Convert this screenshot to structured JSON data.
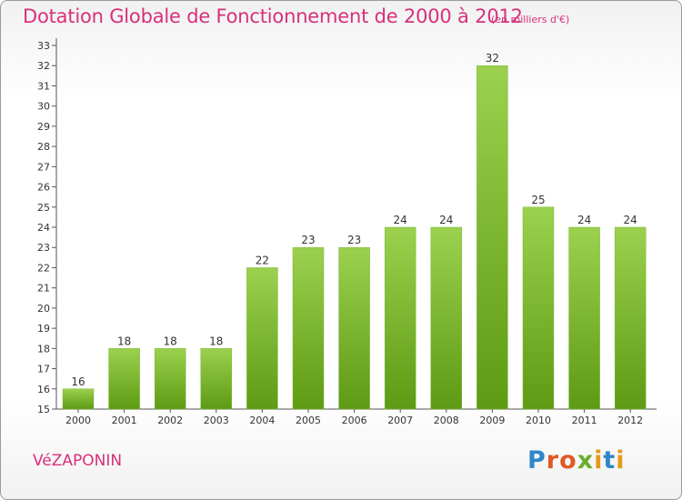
{
  "chart_data": {
    "type": "bar",
    "title": "Dotation Globale de Fonctionnement de 2000 à 2012",
    "subtitle": "(en milliers d'€)",
    "xlabel": "",
    "ylabel": "",
    "categories": [
      "2000",
      "2001",
      "2002",
      "2003",
      "2004",
      "2005",
      "2006",
      "2007",
      "2008",
      "2009",
      "2010",
      "2011",
      "2012"
    ],
    "values": [
      16,
      18,
      18,
      18,
      22,
      23,
      23,
      24,
      24,
      32,
      25,
      24,
      24
    ],
    "ylim": [
      15,
      33
    ],
    "yticks": [
      "15",
      "16",
      "17",
      "18",
      "19",
      "20",
      "21",
      "22",
      "23",
      "24",
      "25",
      "26",
      "27",
      "28",
      "29",
      "30",
      "31",
      "32",
      "33"
    ],
    "grid": false,
    "colors": {
      "bar_top": "#9bd14e",
      "bar_bottom": "#5e9a14",
      "axis": "#555555",
      "text": "#333333"
    }
  },
  "commune": "VéZAPONIN",
  "logo": {
    "text": "Proxiti",
    "colors": [
      "#2f86c9",
      "#e05a24",
      "#6cad2d",
      "#e49a1b"
    ]
  }
}
